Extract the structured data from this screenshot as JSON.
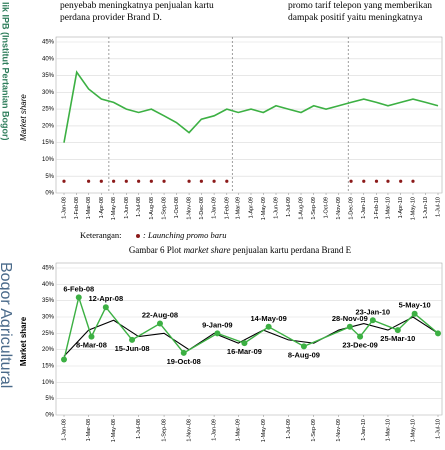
{
  "watermark": {
    "top": "lik IPB (Institut Pertanian Bogor)",
    "bottom": "Bogor Agricultural"
  },
  "text": {
    "left": [
      "penyebab meningkatnya penjualan kartu",
      "perdana provider Brand D."
    ],
    "right": [
      "promo tarif telepon yang memberikan",
      "dampak positif yaitu meningkatnya"
    ]
  },
  "legend_note": "Keterangan:",
  "caption": {
    "prefix": "Gambar 6 Plot ",
    "italic": "market share",
    "suffix": " penjualan kartu perdana Brand E"
  },
  "chart_data": [
    {
      "type": "line",
      "y_label": "Market share",
      "categories": [
        "1-Jan-08",
        "1-Feb-08",
        "1-Mar-08",
        "1-Apr-08",
        "1-May-08",
        "1-Jun-08",
        "1-Jul-08",
        "1-Aug-08",
        "1-Sep-08",
        "1-Oct-08",
        "1-Nov-08",
        "1-Dec-08",
        "1-Jan-09",
        "1-Feb-09",
        "1-Mar-09",
        "1-Apr-09",
        "1-May-09",
        "1-Jun-09",
        "1-Jul-09",
        "1-Aug-09",
        "1-Sep-09",
        "1-Oct-09",
        "1-Nov-09",
        "1-Dec-09",
        "1-Jan-10",
        "1-Feb-10",
        "1-Mar-10",
        "1-Apr-10",
        "1-May-10",
        "1-Jun-10",
        "1-Jul-10"
      ],
      "ylim": [
        0,
        45
      ],
      "yticks": [
        {
          "value": 0,
          "label": "0%"
        },
        {
          "value": 5,
          "label": "5%"
        },
        {
          "value": 10,
          "label": "10%"
        },
        {
          "value": 15,
          "label": "15%"
        },
        {
          "value": 20,
          "label": "20%"
        },
        {
          "value": 25,
          "label": "25%"
        },
        {
          "value": 30,
          "label": "30%"
        },
        {
          "value": 35,
          "label": "35%"
        },
        {
          "value": 40,
          "label": "40%"
        },
        {
          "value": 45,
          "label": "45%"
        }
      ],
      "grid": true,
      "series": [
        {
          "color": "#3cb043",
          "values": [
            15,
            36,
            31,
            28,
            27,
            25,
            24,
            25,
            23,
            21,
            18,
            22,
            23,
            25,
            24,
            25,
            24,
            26,
            25,
            24,
            26,
            25,
            26,
            27,
            28,
            27,
            26,
            27,
            28,
            27,
            26
          ]
        },
        {
          "name": ": Launching promo baru",
          "color": "#8b1a1a",
          "marker": "dot",
          "values": [
            3.5,
            null,
            3.5,
            3.5,
            3.5,
            3.5,
            3.5,
            3.5,
            3.5,
            null,
            3.5,
            3.5,
            3.5,
            3.5,
            null,
            null,
            null,
            null,
            null,
            null,
            null,
            null,
            null,
            3.5,
            3.5,
            3.5,
            3.5,
            3.5,
            3.5,
            null,
            null
          ]
        }
      ]
    },
    {
      "type": "line",
      "y_label": "Market share",
      "categories": [
        "1-Jan-08",
        "1-Mar-08",
        "1-May-08",
        "1-Jul-08",
        "1-Sep-08",
        "1-Nov-08",
        "1-Jan-09",
        "1-Mar-09",
        "1-May-09",
        "1-Jul-09",
        "1-Sep-09",
        "1-Nov-09",
        "1-Jan-10",
        "1-Mar-10",
        "1-May-10",
        "1-Jul-10"
      ],
      "ylim": [
        0,
        45
      ],
      "yticks": [
        {
          "value": 0,
          "label": "0%"
        },
        {
          "value": 5,
          "label": "5%"
        },
        {
          "value": 10,
          "label": "10%"
        },
        {
          "value": 15,
          "label": "15%"
        },
        {
          "value": 20,
          "label": "20%"
        },
        {
          "value": 25,
          "label": "25%"
        },
        {
          "value": 30,
          "label": "30%"
        },
        {
          "value": 35,
          "label": "35%"
        },
        {
          "value": 40,
          "label": "40%"
        },
        {
          "value": 45,
          "label": "45%"
        }
      ],
      "grid": true,
      "series": [
        {
          "color": "#000000",
          "values": [
            18,
            26,
            29,
            24,
            25,
            20,
            25,
            22,
            26,
            23,
            22,
            26,
            28,
            26,
            30,
            25
          ]
        },
        {
          "color": "#3cb043",
          "marker": "dot",
          "x": [
            "1-Jan-08",
            "6-Feb-08",
            "8-Mar-08",
            "12-Apr-08",
            "15-Jun-08",
            "22-Aug-08",
            "19-Oct-08",
            "9-Jan-09",
            "16-Mar-09",
            "14-May-09",
            "8-Aug-09",
            "28-Nov-09",
            "23-Dec-09",
            "23-Jan-10",
            "25-Mar-10",
            "5-May-10",
            "1-Jul-10"
          ],
          "values": [
            17,
            36,
            24,
            33,
            23,
            28,
            19,
            25,
            22,
            27,
            21,
            27,
            24,
            29,
            26,
            31,
            25
          ],
          "labels": [
            null,
            "6-Feb-08",
            "8-Mar-08",
            "12-Apr-08",
            "15-Jun-08",
            "22-Aug-08",
            "19-Oct-08",
            "9-Jan-09",
            "16-Mar-09",
            "14-May-09",
            "8-Aug-09",
            "28-Nov-09",
            "23-Dec-09",
            "23-Jan-10",
            "25-Mar-10",
            "5-May-10",
            null
          ]
        }
      ]
    }
  ]
}
